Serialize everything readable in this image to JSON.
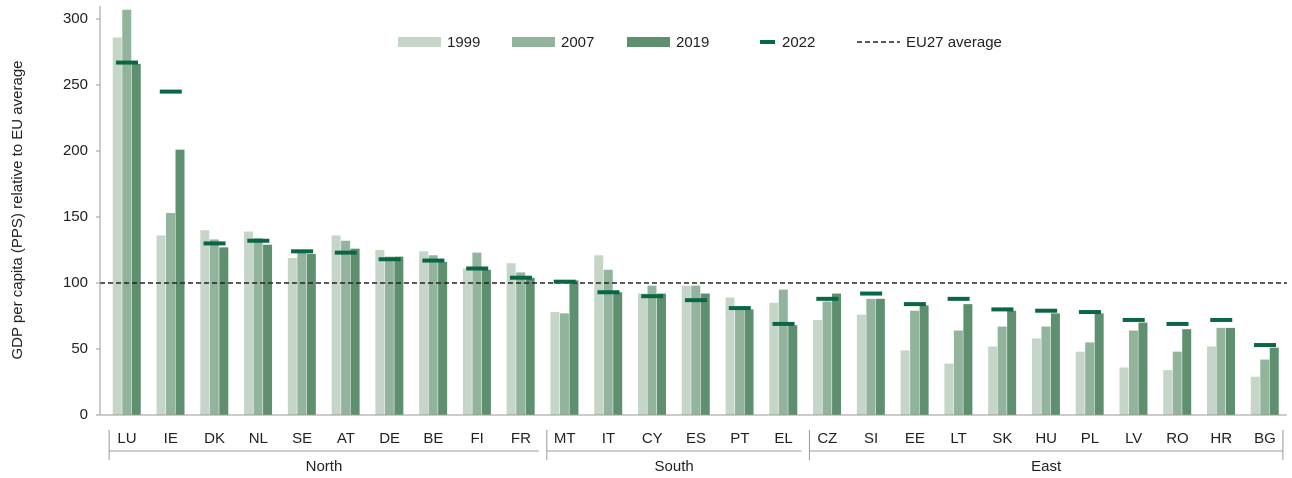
{
  "chart_data": {
    "type": "grouped-bar",
    "y_label": "GDP per capita (PPS) relative to EU average",
    "groups": [
      {
        "label": "North",
        "categories": [
          "LU",
          "IE",
          "DK",
          "NL",
          "SE",
          "AT",
          "DE",
          "BE",
          "FI",
          "FR"
        ]
      },
      {
        "label": "South",
        "categories": [
          "MT",
          "IT",
          "CY",
          "ES",
          "PT",
          "EL"
        ]
      },
      {
        "label": "East",
        "categories": [
          "CZ",
          "SI",
          "EE",
          "LT",
          "SK",
          "HU",
          "PL",
          "LV",
          "RO",
          "HR",
          "BG"
        ]
      }
    ],
    "series": [
      {
        "name": "1999",
        "color": "#c5d6c8",
        "values": [
          286,
          136,
          140,
          139,
          119,
          136,
          125,
          124,
          111,
          115,
          78,
          121,
          92,
          98,
          89,
          85,
          72,
          76,
          49,
          39,
          52,
          58,
          48,
          36,
          34,
          52,
          29
        ]
      },
      {
        "name": "2007",
        "color": "#93b49c",
        "values": [
          307,
          153,
          133,
          134,
          123,
          132,
          120,
          121,
          123,
          108,
          77,
          110,
          98,
          98,
          82,
          95,
          86,
          88,
          79,
          64,
          67,
          67,
          55,
          64,
          48,
          66,
          42
        ]
      },
      {
        "name": "2019",
        "color": "#5e8f6f",
        "values": [
          266,
          201,
          127,
          129,
          122,
          126,
          120,
          116,
          110,
          104,
          102,
          93,
          92,
          92,
          80,
          68,
          92,
          88,
          83,
          84,
          79,
          77,
          77,
          70,
          65,
          66,
          51
        ]
      }
    ],
    "markers": {
      "name": "2022",
      "color": "#0b6645",
      "values": [
        267,
        245,
        130,
        132,
        124,
        123,
        118,
        117,
        111,
        104,
        101,
        93,
        90,
        87,
        81,
        69,
        88,
        92,
        84,
        88,
        80,
        79,
        78,
        72,
        69,
        72,
        53
      ]
    },
    "reference_line": {
      "value": 100,
      "label": "EU27 average"
    },
    "ylim": [
      0,
      310
    ],
    "yticks": [
      0,
      50,
      100,
      150,
      200,
      250,
      300
    ],
    "grid": false
  }
}
